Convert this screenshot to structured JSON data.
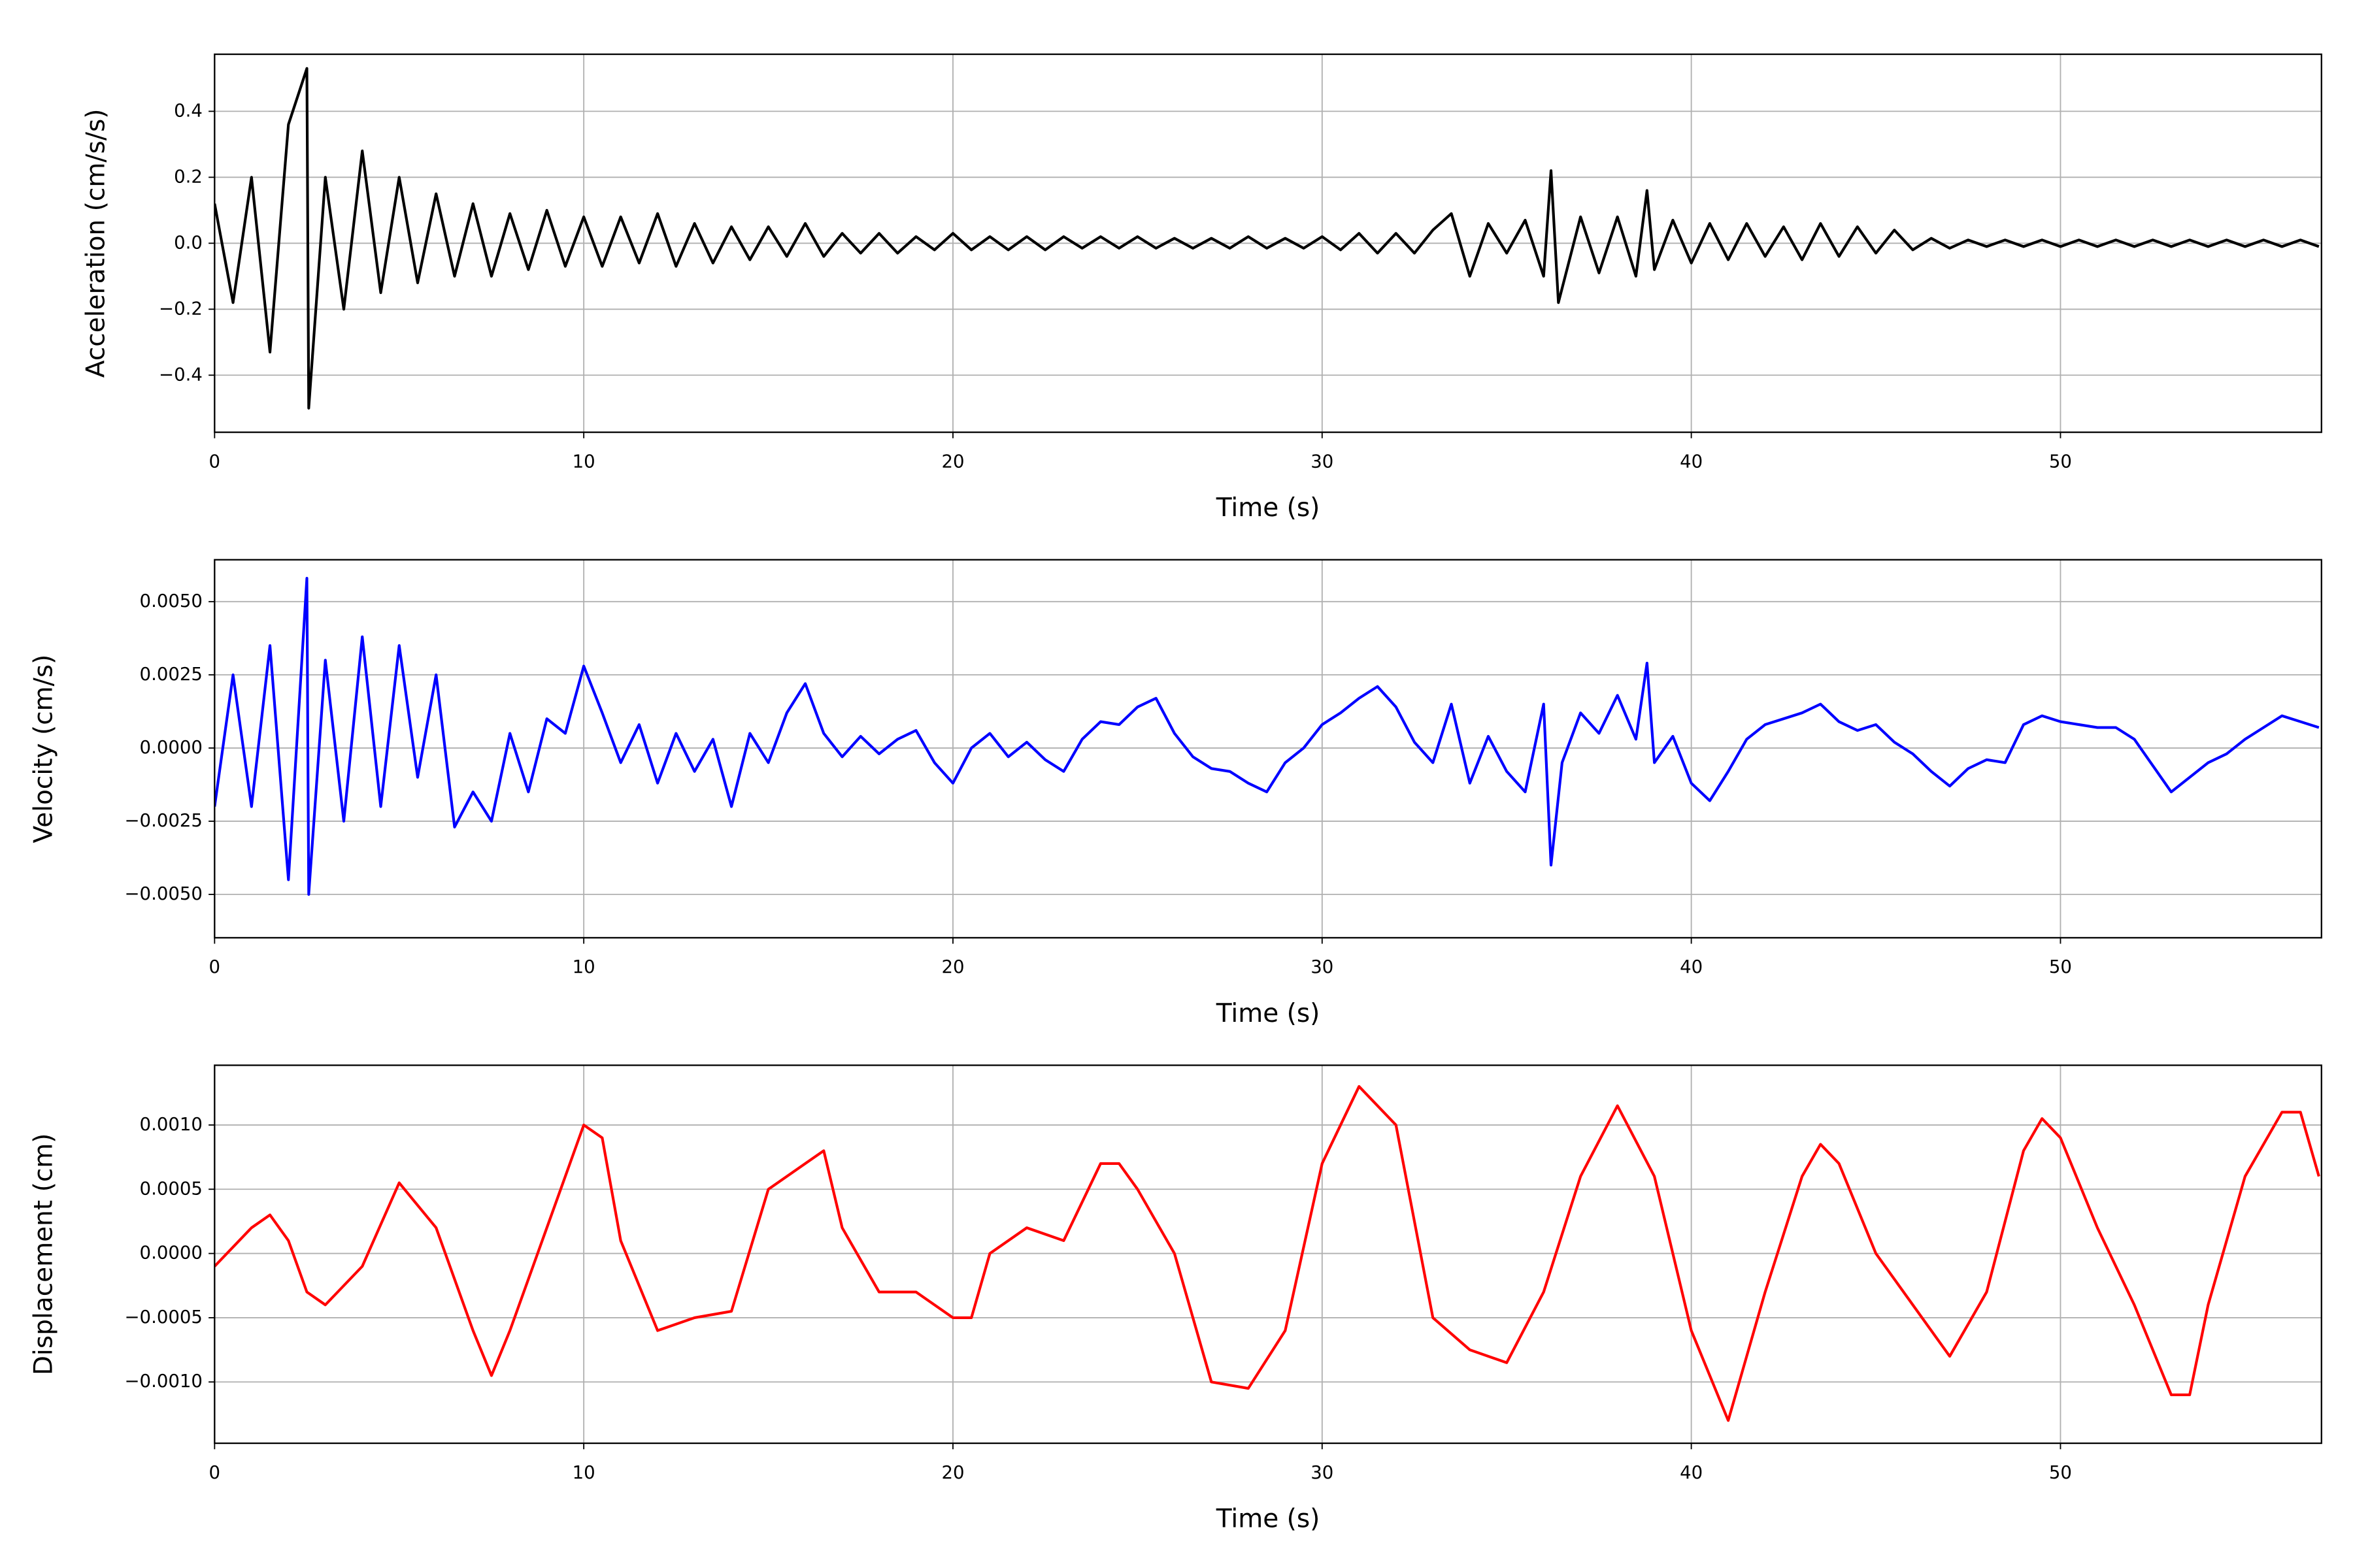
{
  "chart_data": [
    {
      "type": "line",
      "x_label": "Time (s)",
      "y_label": "Acceleration (cm/s/s)",
      "color": "#000000",
      "grid": true,
      "xlim": [
        0,
        57.07
      ],
      "ylim": [
        -0.573,
        0.573
      ],
      "xticks": [
        0,
        10,
        20,
        30,
        40,
        50
      ],
      "yticks": [
        {
          "value": -0.4,
          "label": "−0.4"
        },
        {
          "value": -0.2,
          "label": "−0.2"
        },
        {
          "value": 0,
          "label": "0.0"
        },
        {
          "value": 0.2,
          "label": "0.2"
        },
        {
          "value": 0.4,
          "label": "0.4"
        }
      ],
      "x": [
        0,
        0.5,
        1,
        1.5,
        2,
        2.5,
        2.55,
        3,
        3.5,
        4,
        4.5,
        5,
        5.5,
        6,
        6.5,
        7,
        7.5,
        8,
        8.5,
        9,
        9.5,
        10,
        10.5,
        11,
        11.5,
        12,
        12.5,
        13,
        13.5,
        14,
        14.5,
        15,
        15.5,
        16,
        16.5,
        17,
        17.5,
        18,
        18.5,
        19,
        19.5,
        20,
        20.5,
        21,
        21.5,
        22,
        22.5,
        23,
        23.5,
        24,
        24.5,
        25,
        25.5,
        26,
        26.5,
        27,
        27.5,
        28,
        28.5,
        29,
        29.5,
        30,
        30.5,
        31,
        31.5,
        32,
        32.5,
        33,
        33.5,
        34,
        34.5,
        35,
        35.5,
        36,
        36.2,
        36.4,
        37,
        37.5,
        38,
        38.5,
        38.8,
        39,
        39.5,
        40,
        40.5,
        41,
        41.5,
        42,
        42.5,
        43,
        43.5,
        44,
        44.5,
        45,
        45.5,
        46,
        46.5,
        47,
        47.5,
        48,
        48.5,
        49,
        49.5,
        50,
        50.5,
        51,
        51.5,
        52,
        52.5,
        53,
        53.5,
        54,
        54.5,
        55,
        55.5,
        56,
        56.5,
        57
      ],
      "values": [
        0.12,
        -0.18,
        0.2,
        -0.33,
        0.36,
        0.53,
        -0.5,
        0.2,
        -0.2,
        0.28,
        -0.15,
        0.2,
        -0.12,
        0.15,
        -0.1,
        0.12,
        -0.1,
        0.09,
        -0.08,
        0.1,
        -0.07,
        0.08,
        -0.07,
        0.08,
        -0.06,
        0.09,
        -0.07,
        0.06,
        -0.06,
        0.05,
        -0.05,
        0.05,
        -0.04,
        0.06,
        -0.04,
        0.03,
        -0.03,
        0.03,
        -0.03,
        0.02,
        -0.02,
        0.03,
        -0.02,
        0.02,
        -0.02,
        0.02,
        -0.02,
        0.02,
        -0.015,
        0.02,
        -0.015,
        0.02,
        -0.015,
        0.015,
        -0.015,
        0.015,
        -0.015,
        0.02,
        -0.015,
        0.015,
        -0.015,
        0.02,
        -0.02,
        0.03,
        -0.03,
        0.03,
        -0.03,
        0.04,
        0.09,
        -0.1,
        0.06,
        -0.03,
        0.07,
        -0.1,
        0.22,
        -0.18,
        0.08,
        -0.09,
        0.08,
        -0.1,
        0.16,
        -0.08,
        0.07,
        -0.06,
        0.06,
        -0.05,
        0.06,
        -0.04,
        0.05,
        -0.05,
        0.06,
        -0.04,
        0.05,
        -0.03,
        0.04,
        -0.02,
        0.015,
        -0.015,
        0.01,
        -0.01,
        0.01,
        -0.01,
        0.01,
        -0.01,
        0.01,
        -0.01,
        0.01,
        -0.01,
        0.01,
        -0.01,
        0.01,
        -0.01,
        0.01,
        -0.01,
        0.01,
        -0.01,
        0.01,
        -0.01
      ]
    },
    {
      "type": "line",
      "x_label": "Time (s)",
      "y_label": "Velocity (cm/s)",
      "color": "#0000ff",
      "grid": true,
      "xlim": [
        0,
        57.07
      ],
      "ylim": [
        -0.00648,
        0.00643
      ],
      "xticks": [
        0,
        10,
        20,
        30,
        40,
        50
      ],
      "yticks": [
        {
          "value": -0.005,
          "label": "−0.0050"
        },
        {
          "value": -0.0025,
          "label": "−0.0025"
        },
        {
          "value": 0,
          "label": "0.0000"
        },
        {
          "value": 0.0025,
          "label": "0.0025"
        },
        {
          "value": 0.005,
          "label": "0.0050"
        }
      ],
      "x": [
        0,
        0.5,
        1,
        1.5,
        2,
        2.5,
        2.55,
        3,
        3.5,
        4,
        4.5,
        5,
        5.5,
        6,
        6.5,
        7,
        7.5,
        8,
        8.5,
        9,
        9.5,
        10,
        10.5,
        11,
        11.5,
        12,
        12.5,
        13,
        13.5,
        14,
        14.5,
        15,
        15.5,
        16,
        16.5,
        17,
        17.5,
        18,
        18.5,
        19,
        19.5,
        20,
        20.5,
        21,
        21.5,
        22,
        22.5,
        23,
        23.5,
        24,
        24.5,
        25,
        25.5,
        26,
        26.5,
        27,
        27.5,
        28,
        28.5,
        29,
        29.5,
        30,
        30.5,
        31,
        31.5,
        32,
        32.5,
        33,
        33.5,
        34,
        34.5,
        35,
        35.5,
        36,
        36.2,
        36.5,
        37,
        37.5,
        38,
        38.5,
        38.8,
        39,
        39.5,
        40,
        40.5,
        41,
        41.5,
        42,
        42.5,
        43,
        43.5,
        44,
        44.5,
        45,
        45.5,
        46,
        46.5,
        47,
        47.5,
        48,
        48.5,
        49,
        49.5,
        50,
        50.5,
        51,
        51.5,
        52,
        52.5,
        53,
        53.5,
        54,
        54.5,
        55,
        55.5,
        56,
        56.5,
        57
      ],
      "values": [
        -0.002,
        0.0025,
        -0.002,
        0.0035,
        -0.0045,
        0.0058,
        -0.005,
        0.003,
        -0.0025,
        0.0038,
        -0.002,
        0.0035,
        -0.001,
        0.0025,
        -0.0027,
        -0.0015,
        -0.0025,
        0.0005,
        -0.0015,
        0.001,
        0.0005,
        0.0028,
        0.0012,
        -0.0005,
        0.0008,
        -0.0012,
        0.0005,
        -0.0008,
        0.0003,
        -0.002,
        0.0005,
        -0.0005,
        0.0012,
        0.0022,
        0.0005,
        -0.0003,
        0.0004,
        -0.0002,
        0.0003,
        0.0006,
        -0.0005,
        -0.0012,
        0,
        0.0005,
        -0.0003,
        0.0002,
        -0.0004,
        -0.0008,
        0.0003,
        0.0009,
        0.0008,
        0.0014,
        0.0017,
        0.0005,
        -0.0003,
        -0.0007,
        -0.0008,
        -0.0012,
        -0.0015,
        -0.0005,
        0,
        0.0008,
        0.0012,
        0.0017,
        0.0021,
        0.0014,
        0.0002,
        -0.0005,
        0.0015,
        -0.0012,
        0.0004,
        -0.0008,
        -0.0015,
        0.0015,
        -0.004,
        -0.0005,
        0.0012,
        0.0005,
        0.0018,
        0.0003,
        0.0029,
        -0.0005,
        0.0004,
        -0.0012,
        -0.0018,
        -0.0008,
        0.0003,
        0.0008,
        0.001,
        0.0012,
        0.0015,
        0.0009,
        0.0006,
        0.0008,
        0.0002,
        -0.0002,
        -0.0008,
        -0.0013,
        -0.0007,
        -0.0004,
        -0.0005,
        0.0008,
        0.0011,
        0.0009,
        0.0008,
        0.0007,
        0.0007,
        0.0003,
        -0.0006,
        -0.0015,
        -0.001,
        -0.0005,
        -0.0002,
        0.0003,
        0.0007,
        0.0011,
        0.0009,
        0.0007
      ]
    },
    {
      "type": "line",
      "x_label": "Time (s)",
      "y_label": "Displacement (cm)",
      "color": "#ff0000",
      "grid": true,
      "xlim": [
        0,
        57.07
      ],
      "ylim": [
        -0.001477,
        0.001465
      ],
      "xticks": [
        0,
        10,
        20,
        30,
        40,
        50
      ],
      "yticks": [
        {
          "value": -0.001,
          "label": "−0.0010"
        },
        {
          "value": -0.0005,
          "label": "−0.0005"
        },
        {
          "value": 0,
          "label": "0.0000"
        },
        {
          "value": 0.0005,
          "label": "0.0005"
        },
        {
          "value": 0.001,
          "label": "0.0010"
        }
      ],
      "x": [
        0,
        1,
        1.5,
        2,
        2.5,
        3,
        4,
        5,
        6,
        7,
        7.5,
        8,
        9,
        10,
        10.5,
        11,
        12,
        13,
        14,
        15,
        16,
        16.5,
        17,
        18,
        19,
        20,
        20.5,
        21,
        22,
        23,
        24,
        24.5,
        25,
        26,
        27,
        28,
        29,
        30,
        31,
        32,
        33,
        34,
        35,
        36,
        37,
        38,
        39,
        40,
        41,
        42,
        43,
        43.5,
        44,
        45,
        46,
        47,
        48,
        49,
        49.5,
        50,
        51,
        52,
        53,
        53.5,
        54,
        55,
        56,
        56.5,
        57
      ],
      "values": [
        -0.0001,
        0.0002,
        0.0003,
        0.0001,
        -0.0003,
        -0.0004,
        -0.0001,
        0.00055,
        0.0002,
        -0.0006,
        -0.00095,
        -0.0006,
        0.0002,
        0.001,
        0.0009,
        0.0001,
        -0.0006,
        -0.0005,
        -0.00045,
        0.0005,
        0.0007,
        0.0008,
        0.0002,
        -0.0003,
        -0.0003,
        -0.0005,
        -0.0005,
        0,
        0.0002,
        0.0001,
        0.0007,
        0.0007,
        0.0005,
        0,
        -0.001,
        -0.00105,
        -0.0006,
        0.0007,
        0.0013,
        0.001,
        -0.0005,
        -0.00075,
        -0.00085,
        -0.0003,
        0.0006,
        0.00115,
        0.0006,
        -0.0006,
        -0.0013,
        -0.0003,
        0.0006,
        0.00085,
        0.0007,
        0,
        -0.0004,
        -0.0008,
        -0.0003,
        0.0008,
        0.00105,
        0.0009,
        0.0002,
        -0.0004,
        -0.0011,
        -0.0011,
        -0.0004,
        0.0006,
        0.0011,
        0.0011,
        0.0006
      ]
    }
  ]
}
